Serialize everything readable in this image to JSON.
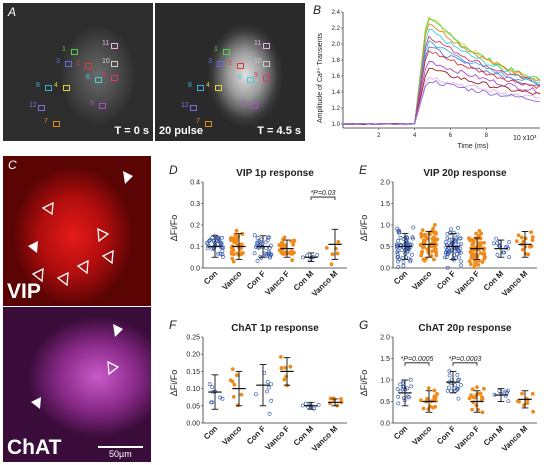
{
  "panels": {
    "A": {
      "letter": "A",
      "time_left": "T = 0 s",
      "pulse": "20 pulse",
      "time_right": "T = 4.5 s",
      "rois": [
        {
          "id": "1",
          "color": "#53d14a"
        },
        {
          "id": "2",
          "color": "#d83a3a"
        },
        {
          "id": "3",
          "color": "#6a6ae0"
        },
        {
          "id": "4",
          "color": "#e0d23a"
        },
        {
          "id": "5",
          "color": "#b04ad0"
        },
        {
          "id": "6",
          "color": "#3ad2d8"
        },
        {
          "id": "7",
          "color": "#e08a1a"
        },
        {
          "id": "8",
          "color": "#3ab0e0"
        },
        {
          "id": "9",
          "color": "#d83a70"
        },
        {
          "id": "10",
          "color": "#cfcfcf"
        },
        {
          "id": "11",
          "color": "#e8b0e8"
        },
        {
          "id": "12",
          "color": "#8a6ae0"
        }
      ]
    },
    "B": {
      "letter": "B",
      "ylabel": "Amplitude of Ca²⁺ Transients",
      "xlabel": "Time (ms)",
      "xmult": "10 x10³",
      "yticks": [
        "1.0",
        "1.2",
        "1.4",
        "1.6",
        "1.8",
        "2.0",
        "2.2",
        "2.4"
      ],
      "xticks": [
        "2",
        "4",
        "6",
        "8"
      ]
    },
    "C": {
      "letter": "C",
      "vip": "VIP",
      "chat": "ChAT",
      "scalebar": "50µm"
    },
    "D": {
      "letter": "D",
      "title": "VIP 1p response",
      "ylabel": "ΔFi/Fo",
      "sig": "*P=0.03",
      "yticks": [
        "0.0",
        "0.1",
        "0.2",
        "0.3",
        "0.4"
      ],
      "cats": [
        "Con",
        "Vanco",
        "Con F",
        "Vanco F",
        "Con M",
        "Vanco M"
      ]
    },
    "E": {
      "letter": "E",
      "title": "VIP 20p response",
      "ylabel": "ΔFi/Fo",
      "yticks": [
        "0.0",
        "0.5",
        "1.0",
        "1.5",
        "2.0"
      ],
      "cats": [
        "Con",
        "Vanco",
        "Con F",
        "Vanco F",
        "Con M",
        "Vanco M"
      ]
    },
    "F": {
      "letter": "F",
      "title": "ChAT 1p response",
      "ylabel": "ΔFi/Fo",
      "yticks": [
        "0.00",
        "0.05",
        "0.10",
        "0.15",
        "0.20",
        "0.25"
      ],
      "cats": [
        "Con",
        "Vanco",
        "Con F",
        "Vanco F",
        "Con M",
        "Vanco M"
      ]
    },
    "G": {
      "letter": "G",
      "title": "ChAT 20p response",
      "ylabel": "ΔFi/Fo",
      "sig1": "*P=0.0005",
      "sig2": "*P=0.0003",
      "yticks": [
        "0.0",
        "0.5",
        "1.0",
        "1.5",
        "2.0"
      ],
      "cats": [
        "Con",
        "Vanco",
        "Con F",
        "Vanco F",
        "Con M",
        "Vanco M"
      ]
    }
  },
  "chart_data": [
    {
      "type": "line",
      "panel": "B",
      "xlabel": "Time (ms)",
      "ylabel": "Amplitude of Ca²⁺ Transients",
      "xlim": [
        0,
        11000
      ],
      "ylim": [
        0.95,
        2.4
      ],
      "series": [
        {
          "color": "#e0d23a",
          "peak": 2.38
        },
        {
          "color": "#53d14a",
          "peak": 2.35
        },
        {
          "color": "#e08a1a",
          "peak": 2.3
        },
        {
          "color": "#3ad2d8",
          "peak": 2.2
        },
        {
          "color": "#d83a70",
          "peak": 2.12
        },
        {
          "color": "#3ab0e0",
          "peak": 2.05
        },
        {
          "color": "#6a6ae0",
          "peak": 1.98
        },
        {
          "color": "#d83a3a",
          "peak": 1.93
        },
        {
          "color": "#b04ad0",
          "peak": 1.8
        },
        {
          "color": "#9a2020",
          "peak": 1.7
        },
        {
          "color": "#e8b0e8",
          "peak": 1.6
        },
        {
          "color": "#8a6ae0",
          "peak": 1.55
        }
      ]
    },
    {
      "type": "scatter",
      "panel": "D",
      "title": "VIP 1p response",
      "ylabel": "ΔFi/Fo",
      "ylim": [
        0,
        0.4
      ],
      "groups": [
        {
          "cat": "Con",
          "mean": 0.1,
          "sd": 0.05
        },
        {
          "cat": "Vanco",
          "mean": 0.1,
          "sd": 0.06
        },
        {
          "cat": "Con F",
          "mean": 0.1,
          "sd": 0.05
        },
        {
          "cat": "Vanco F",
          "mean": 0.09,
          "sd": 0.04
        },
        {
          "cat": "Con M",
          "mean": 0.05,
          "sd": 0.02
        },
        {
          "cat": "Vanco M",
          "mean": 0.11,
          "sd": 0.07
        }
      ]
    },
    {
      "type": "scatter",
      "panel": "E",
      "title": "VIP 20p response",
      "ylabel": "ΔFi/Fo",
      "ylim": [
        0,
        2.0
      ],
      "groups": [
        {
          "cat": "Con",
          "mean": 0.5,
          "sd": 0.3
        },
        {
          "cat": "Vanco",
          "mean": 0.55,
          "sd": 0.3
        },
        {
          "cat": "Con F",
          "mean": 0.5,
          "sd": 0.3
        },
        {
          "cat": "Vanco F",
          "mean": 0.45,
          "sd": 0.25
        },
        {
          "cat": "Con M",
          "mean": 0.45,
          "sd": 0.2
        },
        {
          "cat": "Vanco M",
          "mean": 0.55,
          "sd": 0.3
        }
      ]
    },
    {
      "type": "scatter",
      "panel": "F",
      "title": "ChAT 1p response",
      "ylabel": "ΔFi/Fo",
      "ylim": [
        0,
        0.25
      ],
      "groups": [
        {
          "cat": "Con",
          "mean": 0.09,
          "sd": 0.05
        },
        {
          "cat": "Vanco",
          "mean": 0.1,
          "sd": 0.05
        },
        {
          "cat": "Con F",
          "mean": 0.11,
          "sd": 0.06
        },
        {
          "cat": "Vanco F",
          "mean": 0.15,
          "sd": 0.04
        },
        {
          "cat": "Con M",
          "mean": 0.05,
          "sd": 0.01
        },
        {
          "cat": "Vanco M",
          "mean": 0.06,
          "sd": 0.01
        }
      ]
    },
    {
      "type": "scatter",
      "panel": "G",
      "title": "ChAT 20p response",
      "ylabel": "ΔFi/Fo",
      "ylim": [
        0,
        2.0
      ],
      "groups": [
        {
          "cat": "Con",
          "mean": 0.7,
          "sd": 0.3
        },
        {
          "cat": "Vanco",
          "mean": 0.5,
          "sd": 0.25
        },
        {
          "cat": "Con F",
          "mean": 0.95,
          "sd": 0.25
        },
        {
          "cat": "Vanco F",
          "mean": 0.5,
          "sd": 0.25
        },
        {
          "cat": "Con M",
          "mean": 0.65,
          "sd": 0.15
        },
        {
          "cat": "Vanco M",
          "mean": 0.55,
          "sd": 0.2
        }
      ]
    }
  ]
}
